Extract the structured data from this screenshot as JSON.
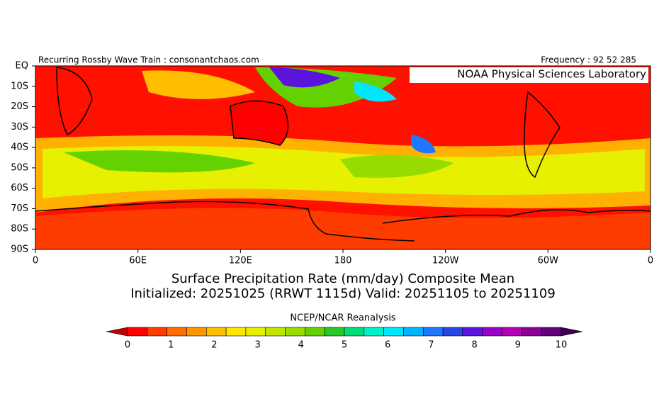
{
  "header": {
    "left": "Recurring Rossby Wave Train : consonantchaos.com",
    "right": "Frequency : 92 52 285",
    "badge": "NOAA Physical Sciences Laboratory"
  },
  "axes": {
    "lat_labels": [
      "EQ",
      "10S",
      "20S",
      "30S",
      "40S",
      "50S",
      "60S",
      "70S",
      "80S",
      "90S"
    ],
    "lon_labels": [
      "0",
      "60E",
      "120E",
      "180",
      "120W",
      "60W",
      "0"
    ]
  },
  "title": [
    "Surface Precipitation Rate (mm/day) Composite Mean",
    "Initialized: 20251025 (RRWT 1115d) Valid: 20251105 to 20251109"
  ],
  "colorbar": {
    "label": "NCEP/NCAR Reanalysis",
    "ticks": [
      0,
      1,
      2,
      3,
      4,
      5,
      6,
      7,
      8,
      9,
      10
    ],
    "colors": [
      "#c00000",
      "#ff0000",
      "#ff3c00",
      "#ff6e00",
      "#ff9600",
      "#ffbe00",
      "#ffe600",
      "#e6f000",
      "#c0e600",
      "#96dc00",
      "#64d200",
      "#28c828",
      "#00dc78",
      "#00f0c8",
      "#00e6ff",
      "#00b4ff",
      "#1e78ff",
      "#2846e6",
      "#5a14dc",
      "#9600c8",
      "#b400b4",
      "#8c0096",
      "#640078",
      "#3c0050"
    ]
  }
}
